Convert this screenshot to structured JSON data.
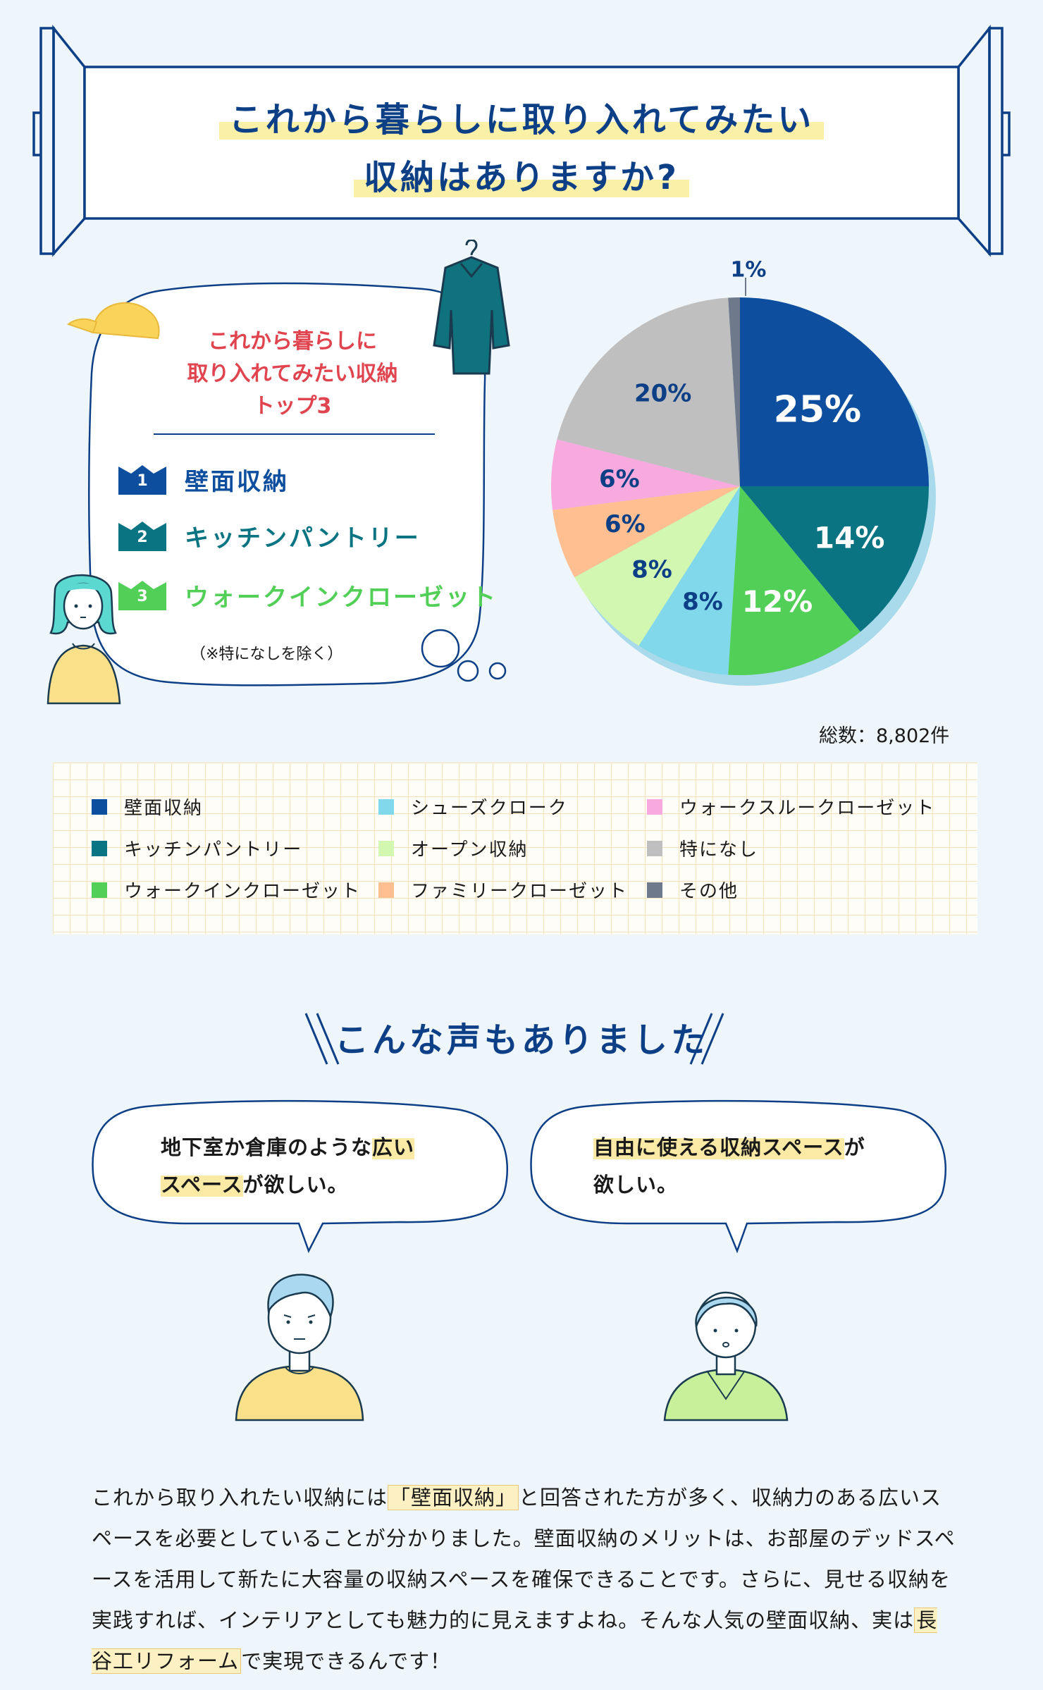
{
  "header": {
    "line1": "これから暮らしに取り入れてみたい",
    "line2": "収納はありますか?"
  },
  "top3": {
    "title_line1": "これから暮らしに",
    "title_line2": "取り入れてみたい収納",
    "title_line3": "トップ3",
    "ranks": [
      {
        "num": "1",
        "label": "壁面収納",
        "color": "#0d4f9e"
      },
      {
        "num": "2",
        "label": "キッチンパントリー",
        "color": "#0b7482"
      },
      {
        "num": "3",
        "label": "ウォークインクローゼット",
        "color": "#52cf57"
      }
    ],
    "note": "（※特になしを除く）"
  },
  "chart_data": {
    "type": "pie",
    "title": "",
    "slices": [
      {
        "label": "壁面収納",
        "value": 25,
        "text": "25%",
        "color": "#0d4f9e"
      },
      {
        "label": "キッチンパントリー",
        "value": 14,
        "text": "14%",
        "color": "#0b7482"
      },
      {
        "label": "ウォークインクローゼット",
        "value": 12,
        "text": "12%",
        "color": "#52cf57"
      },
      {
        "label": "シューズクローク",
        "value": 8,
        "text": "8%",
        "color": "#80d8ea"
      },
      {
        "label": "オープン収納",
        "value": 8,
        "text": "8%",
        "color": "#d2f7b0"
      },
      {
        "label": "ファミリークローゼット",
        "value": 6,
        "text": "6%",
        "color": "#ffbf91"
      },
      {
        "label": "ウォークスルークローゼット",
        "value": 6,
        "text": "6%",
        "color": "#f8a9dd"
      },
      {
        "label": "特になし",
        "value": 20,
        "text": "20%",
        "color": "#bfbfc0"
      },
      {
        "label": "その他",
        "value": 1,
        "text": "1%",
        "color": "#6e7a8c"
      }
    ],
    "total_label": "総数：8,802件",
    "legend_placement": "bottom"
  },
  "legend": [
    {
      "label": "壁面収納",
      "color": "#0d4f9e"
    },
    {
      "label": "キッチンパントリー",
      "color": "#0b7482"
    },
    {
      "label": "ウォークインクローゼット",
      "color": "#52cf57"
    },
    {
      "label": "シューズクローク",
      "color": "#80d8ea"
    },
    {
      "label": "オープン収納",
      "color": "#d2f7b0"
    },
    {
      "label": "ファミリークローゼット",
      "color": "#ffbf91"
    },
    {
      "label": "ウォークスルークローゼット",
      "color": "#f8a9dd"
    },
    {
      "label": "特になし",
      "color": "#bfbfc0"
    },
    {
      "label": "その他",
      "color": "#6e7a8c"
    }
  ],
  "voices": {
    "title": "こんな声もありました",
    "left_pre": "地下室か倉庫のような",
    "left_hl1": "広い",
    "left_hl2": "スペース",
    "left_post": "が欲しい。",
    "right_hl": "自由に使える収納スペース",
    "right_post1": "が",
    "right_post2": "欲しい。"
  },
  "summary": {
    "p1": "これから取り入れたい収納には",
    "hl1": "「壁面収納」",
    "p2": "と回答された方が多く、収納力のある広いスペースを必要としていることが分かりました。壁面収納のメリットは、お部屋のデッドスペースを活用して新たに大容量の収納スペースを確保できることです。さらに、見せる収納を実践すれば、インテリアとしても魅力的に見えますよね。そんな人気の壁面収納、実は",
    "hl2": "長谷工リフォーム",
    "p3": "で実現できるんです！"
  }
}
